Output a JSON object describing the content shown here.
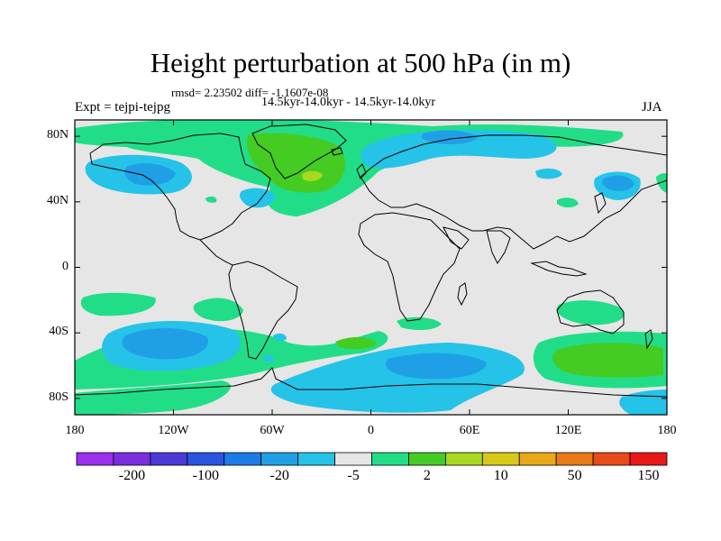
{
  "title": "Height perturbation at 500 hPa (in m)",
  "stats_line": "rmsd= 2.23502 diff= -1.1607e-08",
  "periods_line": "14.5kyr-14.0kyr - 14.5kyr-14.0kyr",
  "experiment_label": "Expt = tejpi-tejpg",
  "season_label": "JJA",
  "map": {
    "lon_range": [
      -180,
      180
    ],
    "lat_range": [
      -90,
      90
    ],
    "ocean_color": "#e6e6e6",
    "coastline_color": "#000000",
    "y_ticks": [
      "80N",
      "40N",
      "0",
      "40S",
      "80S"
    ],
    "x_ticks": [
      "180",
      "120W",
      "60W",
      "0",
      "60E",
      "120E",
      "180"
    ]
  },
  "colorbar": {
    "colors": [
      "#9b30f0",
      "#7a2ee0",
      "#4b3ad8",
      "#2a55e0",
      "#1e7ae6",
      "#1fa0e6",
      "#25c3e8",
      "#e6e6e6",
      "#22dd88",
      "#44cc22",
      "#a8d820",
      "#d8c818",
      "#e8a818",
      "#e87a18",
      "#e84a18",
      "#e81818"
    ],
    "labels": [
      "-200",
      "-100",
      "-20",
      "-5",
      "2",
      "10",
      "50",
      "150"
    ]
  }
}
